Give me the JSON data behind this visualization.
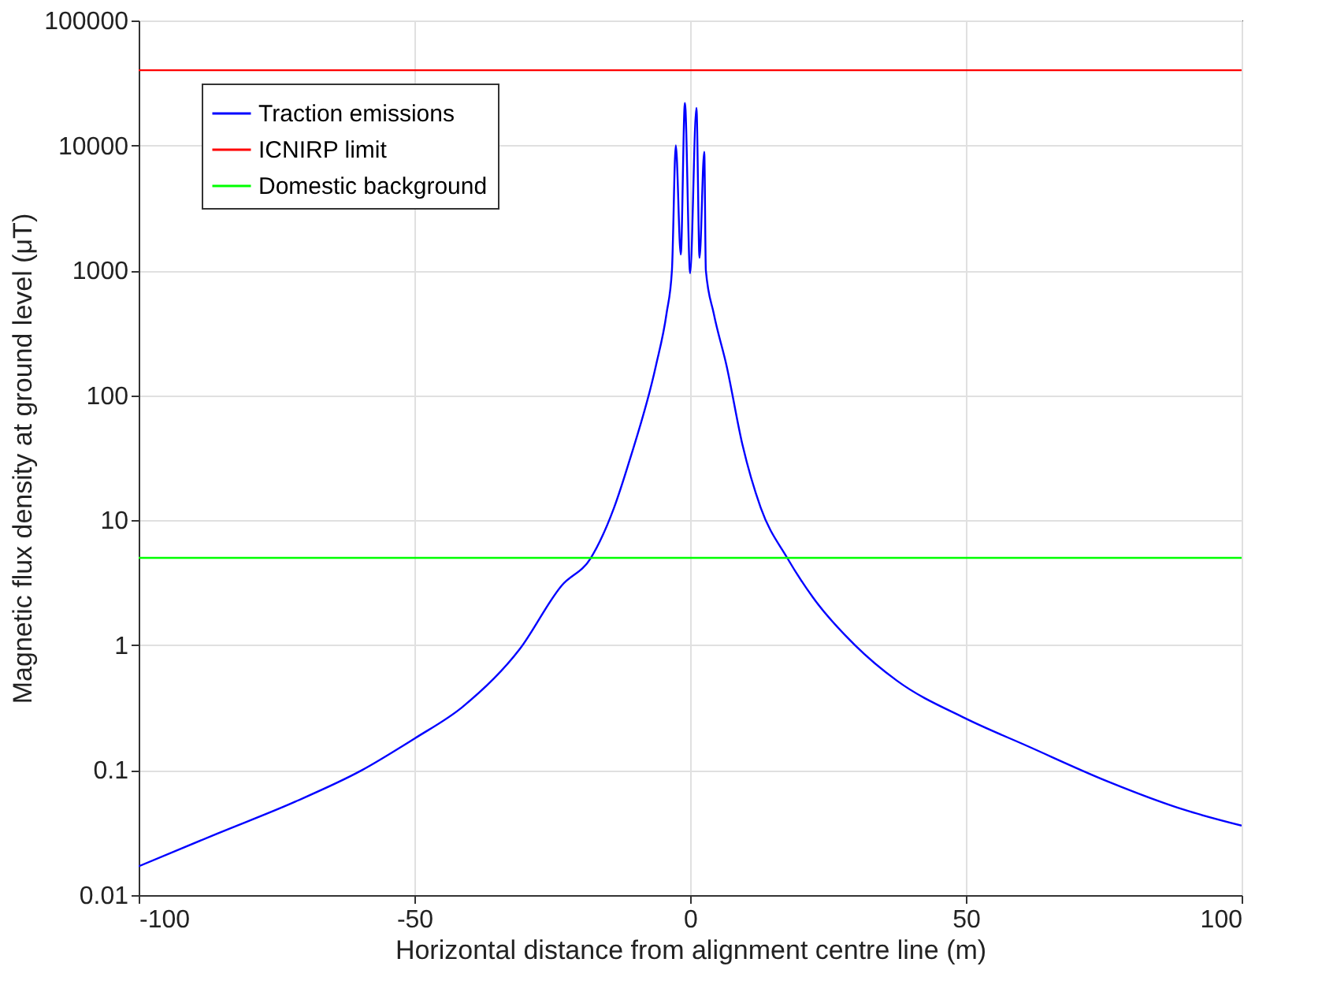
{
  "chart_data": {
    "type": "line",
    "xlabel": "Horizontal distance from alignment centre line (m)",
    "ylabel": "Magnetic flux density at ground level (μT)",
    "log": "y",
    "xlim": [
      -100,
      100
    ],
    "xticks": [
      -100,
      -50,
      0,
      50,
      100
    ],
    "ylim": [
      0.01,
      100000
    ],
    "yticks": [
      0.01,
      0.1,
      1,
      10,
      100,
      1000,
      10000,
      100000
    ],
    "grid": true,
    "legend": "top left",
    "line_style": "solid",
    "marker": "none",
    "series": [
      {
        "name": "Traction emissions",
        "color": "#0000ff",
        "x": [
          -100,
          -85.8,
          -71.6,
          -59.5,
          -49.9,
          -41.3,
          -30.9,
          -23.3,
          -18,
          -13.8,
          -11,
          -6.2,
          -4.27,
          -3.3,
          -2.6,
          -1.7,
          -0.95,
          0,
          1.14,
          1.7,
          2.56,
          2.85,
          4.27,
          6.6,
          9.5,
          12.8,
          17.6,
          22.3,
          29.9,
          37.5,
          49.9,
          61.3,
          75.5,
          89.7,
          100
        ],
        "values": [
          0.017,
          0.031,
          0.056,
          0.1,
          0.18,
          0.32,
          0.93,
          3,
          5,
          12.6,
          30,
          173,
          454,
          1000,
          10000,
          1340,
          21900,
          950,
          20000,
          1260,
          8900,
          1000,
          454,
          173,
          40,
          12.6,
          5,
          2.4,
          1,
          0.52,
          0.26,
          0.155,
          0.082,
          0.048,
          0.036
        ]
      },
      {
        "name": "ICNIRP limit",
        "color": "#ff0000",
        "x": [
          -100,
          100
        ],
        "values": [
          40000,
          40000
        ]
      },
      {
        "name": "Domestic background",
        "color": "#00ff00",
        "x": [
          -100,
          100
        ],
        "values": [
          5,
          5
        ]
      }
    ]
  }
}
